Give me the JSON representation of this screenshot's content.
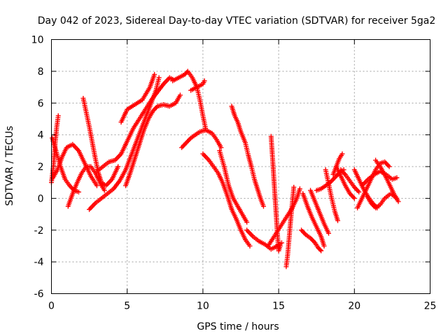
{
  "chart_data": {
    "type": "scatter",
    "title": "Day 042 of 2023, Sidereal Day-to-day VTEC variation (SDTVAR) for receiver 5ga2",
    "xlabel": "GPS time / hours",
    "ylabel": "SDTVAR / TECUs",
    "xlim": [
      0,
      25
    ],
    "ylim": [
      -6,
      10
    ],
    "xticks": [
      "0",
      "5",
      "10",
      "15",
      "20",
      "25"
    ],
    "yticks": [
      "-6",
      "-4",
      "-2",
      "0",
      "2",
      "4",
      "6",
      "8",
      "10"
    ],
    "grid": true,
    "marker": "+",
    "color": "#ff0000",
    "series": [
      {
        "values": [
          [
            0.0,
            1.0
          ],
          [
            0.15,
            2.2
          ],
          [
            0.25,
            3.5
          ],
          [
            0.35,
            4.5
          ],
          [
            0.45,
            5.2
          ]
        ]
      },
      {
        "values": [
          [
            0.05,
            3.8
          ],
          [
            0.3,
            3.0
          ],
          [
            0.6,
            2.0
          ],
          [
            0.9,
            1.2
          ],
          [
            1.2,
            0.8
          ],
          [
            1.5,
            0.5
          ],
          [
            1.8,
            0.4
          ]
        ]
      },
      {
        "values": [
          [
            0.1,
            1.3
          ],
          [
            0.4,
            1.8
          ],
          [
            0.7,
            2.6
          ],
          [
            1.0,
            3.2
          ],
          [
            1.4,
            3.4
          ],
          [
            1.8,
            3.0
          ],
          [
            2.2,
            2.2
          ],
          [
            2.6,
            1.4
          ],
          [
            3.0,
            0.8
          ]
        ]
      },
      {
        "values": [
          [
            1.1,
            -0.5
          ],
          [
            1.4,
            0.3
          ],
          [
            1.7,
            1.0
          ],
          [
            2.0,
            1.6
          ],
          [
            2.3,
            2.0
          ],
          [
            2.6,
            2.0
          ],
          [
            2.9,
            1.6
          ],
          [
            3.2,
            1.0
          ],
          [
            3.5,
            0.5
          ]
        ]
      },
      {
        "values": [
          [
            2.1,
            6.3
          ],
          [
            2.3,
            5.4
          ],
          [
            2.5,
            4.5
          ],
          [
            2.7,
            3.5
          ],
          [
            2.9,
            2.5
          ],
          [
            3.1,
            1.6
          ],
          [
            3.3,
            1.0
          ],
          [
            3.6,
            0.8
          ],
          [
            4.0,
            1.2
          ],
          [
            4.4,
            2.0
          ]
        ]
      },
      {
        "values": [
          [
            2.5,
            -0.7
          ],
          [
            2.9,
            -0.3
          ],
          [
            3.3,
            0.0
          ],
          [
            3.7,
            0.3
          ],
          [
            4.1,
            0.6
          ],
          [
            4.5,
            1.1
          ],
          [
            4.9,
            1.8
          ],
          [
            5.3,
            2.8
          ],
          [
            5.7,
            3.8
          ],
          [
            6.1,
            4.8
          ],
          [
            6.5,
            5.8
          ],
          [
            6.9,
            6.8
          ],
          [
            7.1,
            7.6
          ]
        ]
      },
      {
        "values": [
          [
            3.0,
            1.7
          ],
          [
            3.4,
            2.0
          ],
          [
            3.8,
            2.3
          ],
          [
            4.2,
            2.4
          ],
          [
            4.6,
            2.8
          ],
          [
            5.0,
            3.6
          ],
          [
            5.4,
            4.4
          ],
          [
            5.8,
            5.0
          ],
          [
            6.2,
            5.6
          ],
          [
            6.6,
            6.2
          ],
          [
            7.0,
            6.7
          ],
          [
            7.4,
            7.2
          ],
          [
            7.8,
            7.6
          ],
          [
            8.0,
            7.5
          ]
        ]
      },
      {
        "values": [
          [
            4.9,
            0.8
          ],
          [
            5.2,
            1.6
          ],
          [
            5.5,
            2.5
          ],
          [
            5.8,
            3.4
          ],
          [
            6.1,
            4.3
          ],
          [
            6.4,
            5.0
          ],
          [
            6.7,
            5.5
          ],
          [
            7.0,
            5.8
          ],
          [
            7.4,
            5.9
          ],
          [
            7.8,
            5.8
          ],
          [
            8.2,
            6.0
          ],
          [
            8.5,
            6.5
          ]
        ]
      },
      {
        "values": [
          [
            4.6,
            4.8
          ],
          [
            5.0,
            5.6
          ],
          [
            5.5,
            5.9
          ],
          [
            6.0,
            6.2
          ],
          [
            6.5,
            7.0
          ],
          [
            6.8,
            7.8
          ]
        ]
      },
      {
        "values": [
          [
            8.0,
            7.4
          ],
          [
            8.4,
            7.6
          ],
          [
            8.8,
            7.8
          ],
          [
            9.0,
            8.0
          ],
          [
            9.3,
            7.6
          ],
          [
            9.6,
            7.0
          ],
          [
            9.8,
            6.2
          ],
          [
            10.0,
            5.2
          ],
          [
            10.2,
            4.3
          ]
        ]
      },
      {
        "values": [
          [
            8.6,
            3.2
          ],
          [
            8.9,
            3.5
          ],
          [
            9.2,
            3.8
          ],
          [
            9.5,
            4.0
          ],
          [
            9.8,
            4.2
          ],
          [
            10.2,
            4.3
          ],
          [
            10.6,
            4.1
          ],
          [
            10.9,
            3.7
          ],
          [
            11.2,
            3.2
          ]
        ]
      },
      {
        "values": [
          [
            9.2,
            6.8
          ],
          [
            9.6,
            7.0
          ],
          [
            10.0,
            7.2
          ],
          [
            10.1,
            7.4
          ]
        ]
      },
      {
        "values": [
          [
            10.0,
            2.8
          ],
          [
            10.4,
            2.4
          ],
          [
            10.7,
            2.0
          ],
          [
            11.0,
            1.6
          ],
          [
            11.3,
            1.0
          ],
          [
            11.6,
            0.2
          ],
          [
            11.9,
            -0.7
          ],
          [
            12.2,
            -1.3
          ],
          [
            12.5,
            -2.0
          ],
          [
            12.8,
            -2.6
          ],
          [
            13.1,
            -3.0
          ]
        ]
      },
      {
        "values": [
          [
            11.9,
            5.8
          ],
          [
            12.1,
            5.2
          ],
          [
            12.3,
            4.8
          ],
          [
            12.5,
            4.2
          ],
          [
            12.8,
            3.5
          ],
          [
            13.0,
            2.7
          ],
          [
            13.2,
            2.0
          ],
          [
            13.4,
            1.2
          ],
          [
            13.6,
            0.6
          ],
          [
            13.8,
            0.0
          ],
          [
            14.0,
            -0.5
          ]
        ]
      },
      {
        "values": [
          [
            11.1,
            3.0
          ],
          [
            11.4,
            2.0
          ],
          [
            11.7,
            0.8
          ],
          [
            12.0,
            0.0
          ],
          [
            12.3,
            -0.5
          ],
          [
            12.6,
            -1.0
          ],
          [
            12.9,
            -1.5
          ]
        ]
      },
      {
        "values": [
          [
            12.9,
            -2.0
          ],
          [
            13.3,
            -2.4
          ],
          [
            13.7,
            -2.7
          ],
          [
            14.1,
            -2.9
          ],
          [
            14.5,
            -3.2
          ],
          [
            14.9,
            -3.0
          ],
          [
            15.2,
            -2.8
          ]
        ]
      },
      {
        "values": [
          [
            14.5,
            3.9
          ],
          [
            14.6,
            2.5
          ],
          [
            14.7,
            1.0
          ],
          [
            14.8,
            -0.5
          ],
          [
            14.9,
            -2.0
          ],
          [
            15.0,
            -3.3
          ],
          [
            15.1,
            -3.0
          ]
        ]
      },
      {
        "values": [
          [
            14.3,
            -3.0
          ],
          [
            14.7,
            -2.4
          ],
          [
            15.1,
            -1.8
          ],
          [
            15.5,
            -1.2
          ],
          [
            15.9,
            -0.6
          ],
          [
            16.2,
            0.0
          ],
          [
            16.4,
            0.6
          ]
        ]
      },
      {
        "values": [
          [
            15.5,
            -4.3
          ],
          [
            15.6,
            -3.5
          ],
          [
            15.7,
            -2.4
          ],
          [
            15.8,
            -1.3
          ],
          [
            15.9,
            -0.3
          ],
          [
            16.0,
            0.7
          ]
        ]
      },
      {
        "values": [
          [
            16.5,
            -2.0
          ],
          [
            16.8,
            -2.3
          ],
          [
            17.1,
            -2.5
          ],
          [
            17.4,
            -2.8
          ],
          [
            17.6,
            -3.1
          ],
          [
            17.8,
            -3.3
          ]
        ]
      },
      {
        "values": [
          [
            16.6,
            0.3
          ],
          [
            16.9,
            -0.5
          ],
          [
            17.2,
            -1.2
          ],
          [
            17.5,
            -1.8
          ],
          [
            17.8,
            -2.4
          ],
          [
            18.0,
            -3.0
          ]
        ]
      },
      {
        "values": [
          [
            17.1,
            0.5
          ],
          [
            17.4,
            -0.2
          ],
          [
            17.7,
            -0.9
          ],
          [
            18.0,
            -1.6
          ],
          [
            18.3,
            -2.2
          ]
        ]
      },
      {
        "values": [
          [
            17.5,
            0.5
          ],
          [
            17.8,
            0.6
          ],
          [
            18.1,
            0.8
          ],
          [
            18.4,
            1.0
          ],
          [
            18.7,
            1.3
          ],
          [
            19.0,
            1.6
          ],
          [
            19.3,
            1.8
          ]
        ]
      },
      {
        "values": [
          [
            18.1,
            1.8
          ],
          [
            18.3,
            0.9
          ],
          [
            18.5,
            0.0
          ],
          [
            18.7,
            -0.8
          ],
          [
            18.9,
            -1.4
          ]
        ]
      },
      {
        "values": [
          [
            18.8,
            2.0
          ],
          [
            19.1,
            1.4
          ],
          [
            19.4,
            0.8
          ],
          [
            19.7,
            0.3
          ],
          [
            20.0,
            0.0
          ]
        ]
      },
      {
        "values": [
          [
            18.6,
            1.5
          ],
          [
            18.8,
            2.0
          ],
          [
            19.0,
            2.5
          ],
          [
            19.2,
            2.8
          ]
        ]
      },
      {
        "values": [
          [
            19.1,
            1.8
          ],
          [
            19.4,
            1.5
          ],
          [
            19.7,
            1.1
          ],
          [
            20.0,
            0.7
          ],
          [
            20.3,
            0.4
          ]
        ]
      },
      {
        "values": [
          [
            20.0,
            1.8
          ],
          [
            20.3,
            1.2
          ],
          [
            20.6,
            0.6
          ],
          [
            20.9,
            0.1
          ],
          [
            21.2,
            -0.3
          ],
          [
            21.5,
            -0.6
          ]
        ]
      },
      {
        "values": [
          [
            20.2,
            -0.6
          ],
          [
            20.5,
            0.0
          ],
          [
            20.8,
            0.6
          ],
          [
            21.1,
            1.2
          ],
          [
            21.4,
            1.8
          ],
          [
            21.7,
            2.2
          ],
          [
            22.0,
            2.3
          ],
          [
            22.3,
            2.0
          ]
        ]
      },
      {
        "values": [
          [
            20.5,
            0.8
          ],
          [
            20.9,
            1.2
          ],
          [
            21.3,
            1.5
          ],
          [
            21.7,
            1.7
          ],
          [
            22.1,
            1.5
          ],
          [
            22.5,
            1.2
          ],
          [
            22.8,
            1.3
          ]
        ]
      },
      {
        "values": [
          [
            21.4,
            2.4
          ],
          [
            21.7,
            2.0
          ],
          [
            22.0,
            1.5
          ],
          [
            22.3,
            0.9
          ],
          [
            22.6,
            0.3
          ],
          [
            22.9,
            -0.2
          ]
        ]
      },
      {
        "values": [
          [
            20.8,
            0.2
          ],
          [
            21.1,
            -0.3
          ],
          [
            21.4,
            -0.6
          ],
          [
            21.7,
            -0.4
          ],
          [
            22.0,
            0.0
          ],
          [
            22.4,
            0.3
          ],
          [
            22.8,
            0.0
          ]
        ]
      }
    ]
  }
}
